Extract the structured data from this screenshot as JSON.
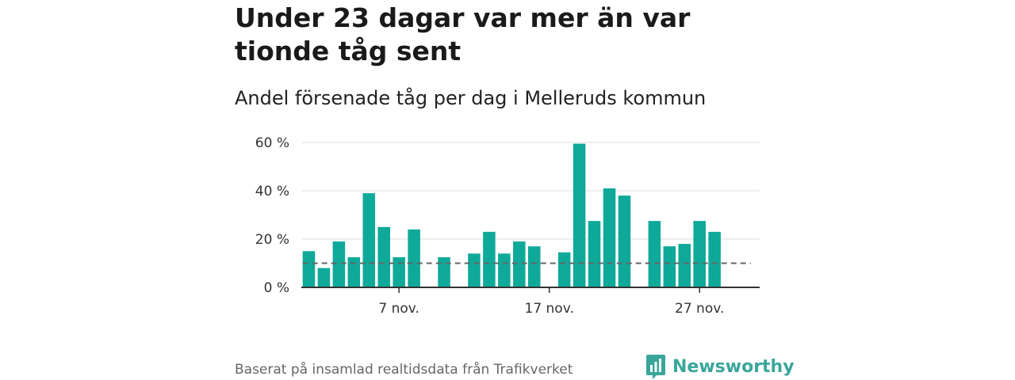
{
  "header": {
    "title": "Under 23 dagar var mer än var tionde tåg sent",
    "subtitle": "Andel försenade tåg per dag i Melleruds kommun"
  },
  "footer": {
    "source": "Baserat på insamlad realtidsdata från Trafikverket",
    "brand": "Newsworthy"
  },
  "colors": {
    "bar": "#0fa99a",
    "grid": "#dddddd",
    "axis": "#333333",
    "reference_line": "#666666",
    "brand": "#3aa69b"
  },
  "icons": {
    "brand_logo": "newsworthy-logo-icon"
  },
  "chart_data": {
    "type": "bar",
    "x": [
      1,
      2,
      3,
      4,
      5,
      6,
      7,
      8,
      9,
      10,
      11,
      12,
      13,
      14,
      15,
      16,
      17,
      18,
      19,
      20,
      21,
      22,
      23,
      24,
      25,
      26,
      27,
      28,
      29,
      30
    ],
    "values": [
      15,
      8,
      19,
      12.5,
      39,
      25,
      12.5,
      24,
      null,
      12.5,
      null,
      14,
      23,
      14,
      19,
      17,
      null,
      14.5,
      59.5,
      27.5,
      41,
      38,
      null,
      27.5,
      17,
      18,
      27.5,
      23,
      null,
      null
    ],
    "x_unit": "nov.",
    "x_ticks": [
      {
        "x": 7,
        "label": "7 nov."
      },
      {
        "x": 17,
        "label": "17 nov."
      },
      {
        "x": 27,
        "label": "27 nov."
      }
    ],
    "y_ticks": [
      {
        "value": 0,
        "label": "0 %"
      },
      {
        "value": 20,
        "label": "20 %"
      },
      {
        "value": 40,
        "label": "40 %"
      },
      {
        "value": 60,
        "label": "60 %"
      }
    ],
    "ylim": [
      0,
      60
    ],
    "xlim": [
      0.5,
      31
    ],
    "reference_line": {
      "value": 10,
      "x_from": 1,
      "x_to": 30,
      "style": "dashed"
    },
    "grid": true,
    "legend": "none"
  }
}
